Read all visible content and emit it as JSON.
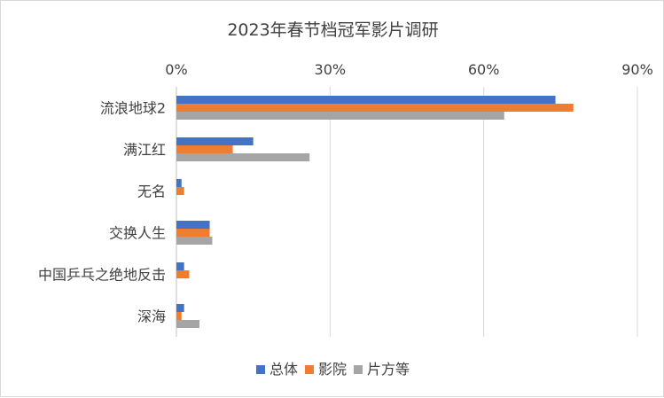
{
  "chart_data": {
    "type": "bar",
    "orientation": "horizontal",
    "title": "2023年春节档冠军影片调研",
    "categories": [
      "流浪地球2",
      "满江红",
      "无名",
      "交换人生",
      "中国乒乓之绝地反击",
      "深海"
    ],
    "x_ticks": [
      "0%",
      "30%",
      "60%",
      "90%"
    ],
    "xlim": [
      0,
      90
    ],
    "x_axis_position": "top",
    "legend_position": "bottom",
    "grid": true,
    "series": [
      {
        "name": "总体",
        "color": "#4472c4",
        "values": [
          74,
          15,
          1,
          6.5,
          1.5,
          1.5
        ]
      },
      {
        "name": "影院",
        "color": "#ed7d31",
        "values": [
          77.5,
          11,
          1.5,
          6.5,
          2.5,
          1
        ]
      },
      {
        "name": "片方等",
        "color": "#a5a5a5",
        "values": [
          64,
          26,
          0,
          7,
          0,
          4.5
        ]
      }
    ]
  }
}
